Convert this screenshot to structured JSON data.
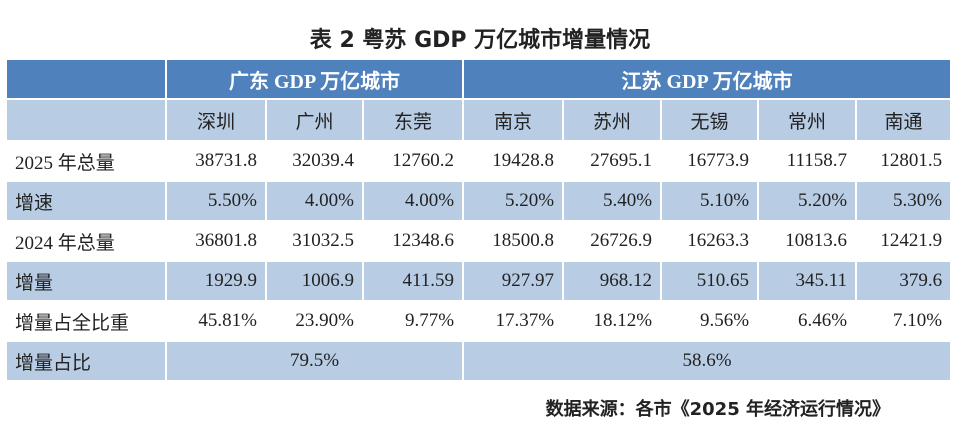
{
  "title": "表 2 粤苏 GDP 万亿城市增量情况",
  "table": {
    "groups": [
      "广东 GDP 万亿城市",
      "江苏 GDP 万亿城市"
    ],
    "cities": [
      "深圳",
      "广州",
      "东莞",
      "南京",
      "苏州",
      "无锡",
      "常州",
      "南通"
    ],
    "rows": [
      {
        "label": "2025 年总量",
        "cells": [
          "38731.8",
          "32039.4",
          "12760.2",
          "19428.8",
          "27695.1",
          "16773.9",
          "11158.7",
          "12801.5"
        ]
      },
      {
        "label": "增速",
        "cells": [
          "5.50%",
          "4.00%",
          "4.00%",
          "5.20%",
          "5.40%",
          "5.10%",
          "5.20%",
          "5.30%"
        ]
      },
      {
        "label": "2024 年总量",
        "cells": [
          "36801.8",
          "31032.5",
          "12348.6",
          "18500.8",
          "26726.9",
          "16263.3",
          "10813.6",
          "12421.9"
        ]
      },
      {
        "label": "增量",
        "cells": [
          "1929.9",
          "1006.9",
          "411.59",
          "927.97",
          "968.12",
          "510.65",
          "345.11",
          "379.6"
        ]
      },
      {
        "label": "增量占全比重",
        "cells": [
          "45.81%",
          "23.90%",
          "9.77%",
          "17.37%",
          "18.12%",
          "9.56%",
          "6.46%",
          "7.10%"
        ]
      },
      {
        "label": "增量占比",
        "cells": [
          "79.5%",
          "58.6%"
        ]
      }
    ]
  },
  "source": "数据来源：各市《2025 年经济运行情况》"
}
